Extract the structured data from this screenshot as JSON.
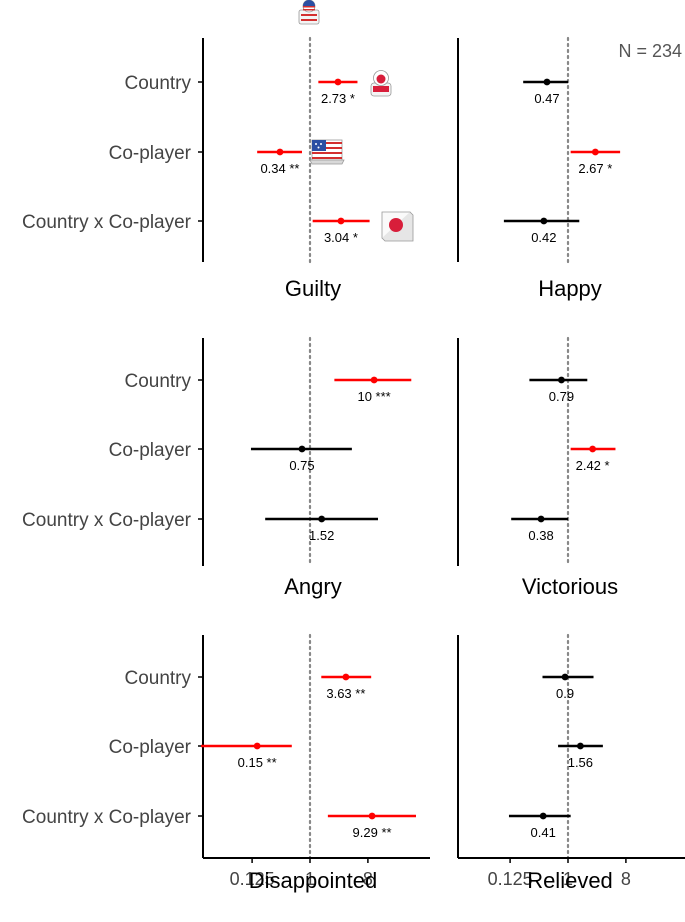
{
  "annotation": "N = 234",
  "colors": {
    "significant": "#ff0000",
    "nonsignificant": "#000000",
    "reference_line": "#888888",
    "axis": "#000000"
  },
  "icons": [
    "usa-flag-person-icon",
    "japan-flag-person-icon",
    "usa-flag-laptop-icon",
    "japan-flag-icon"
  ],
  "chart_data": [
    {
      "type": "scatter",
      "title": "Guilty",
      "x_scale": "log2",
      "x_ticks": [
        "0.125",
        "1",
        "8"
      ],
      "reference_line": 1,
      "categories": [
        "Country",
        "Co-player",
        "Country x Co-player"
      ],
      "points": [
        {
          "category": "Country",
          "estimate": 2.73,
          "ci": [
            1.35,
            5.5
          ],
          "label": "2.73 *",
          "significant": true
        },
        {
          "category": "Co-player",
          "estimate": 0.34,
          "ci": [
            0.15,
            0.75
          ],
          "label": "0.34 **",
          "significant": true
        },
        {
          "category": "Country x Co-player",
          "estimate": 3.04,
          "ci": [
            1.1,
            8.5
          ],
          "label": "3.04 *",
          "significant": true
        }
      ]
    },
    {
      "type": "scatter",
      "title": "Happy",
      "x_scale": "log2",
      "x_ticks": [
        "0.125",
        "1",
        "8"
      ],
      "reference_line": 1,
      "categories": [
        "Country",
        "Co-player",
        "Country x Co-player"
      ],
      "points": [
        {
          "category": "Country",
          "estimate": 0.47,
          "ci": [
            0.2,
            1.0
          ],
          "label": "0.47",
          "significant": false
        },
        {
          "category": "Co-player",
          "estimate": 2.67,
          "ci": [
            1.1,
            6.5
          ],
          "label": "2.67 *",
          "significant": true
        },
        {
          "category": "Country x Co-player",
          "estimate": 0.42,
          "ci": [
            0.1,
            1.5
          ],
          "label": "0.42",
          "significant": false
        }
      ]
    },
    {
      "type": "scatter",
      "title": "Angry",
      "x_scale": "log2",
      "x_ticks": [
        "0.125",
        "1",
        "8"
      ],
      "reference_line": 1,
      "categories": [
        "Country",
        "Co-player",
        "Country x Co-player"
      ],
      "points": [
        {
          "category": "Country",
          "estimate": 10,
          "ci": [
            2.4,
            38
          ],
          "label": "10 ***",
          "significant": true
        },
        {
          "category": "Co-player",
          "estimate": 0.75,
          "ci": [
            0.12,
            4.5
          ],
          "label": "0.75",
          "significant": false
        },
        {
          "category": "Country x Co-player",
          "estimate": 1.52,
          "ci": [
            0.2,
            11.5
          ],
          "label": "1.52",
          "significant": false
        }
      ]
    },
    {
      "type": "scatter",
      "title": "Victorious",
      "x_scale": "log2",
      "x_ticks": [
        "0.125",
        "1",
        "8"
      ],
      "reference_line": 1,
      "categories": [
        "Country",
        "Co-player",
        "Country x Co-player"
      ],
      "points": [
        {
          "category": "Country",
          "estimate": 0.79,
          "ci": [
            0.25,
            2.0
          ],
          "label": "0.79",
          "significant": false
        },
        {
          "category": "Co-player",
          "estimate": 2.42,
          "ci": [
            1.1,
            5.5
          ],
          "label": "2.42 *",
          "significant": true
        },
        {
          "category": "Country x Co-player",
          "estimate": 0.38,
          "ci": [
            0.13,
            1.0
          ],
          "label": "0.38",
          "significant": false
        }
      ]
    },
    {
      "type": "scatter",
      "title": "Disappointed",
      "x_scale": "log2",
      "x_ticks": [
        "0.125",
        "1",
        "8"
      ],
      "reference_line": 1,
      "categories": [
        "Country",
        "Co-player",
        "Country x Co-player"
      ],
      "points": [
        {
          "category": "Country",
          "estimate": 3.63,
          "ci": [
            1.5,
            9.0
          ],
          "label": "3.63 **",
          "significant": true
        },
        {
          "category": "Co-player",
          "estimate": 0.15,
          "ci": [
            0.02,
            0.52
          ],
          "label": "0.15 **",
          "significant": true
        },
        {
          "category": "Country x Co-player",
          "estimate": 9.29,
          "ci": [
            1.9,
            45
          ],
          "label": "9.29 **",
          "significant": true
        }
      ]
    },
    {
      "type": "scatter",
      "title": "Relieved",
      "x_scale": "log2",
      "x_ticks": [
        "0.125",
        "1",
        "8"
      ],
      "reference_line": 1,
      "categories": [
        "Country",
        "Co-player",
        "Country x Co-player"
      ],
      "points": [
        {
          "category": "Country",
          "estimate": 0.9,
          "ci": [
            0.4,
            2.5
          ],
          "label": "0.9",
          "significant": false
        },
        {
          "category": "Co-player",
          "estimate": 1.56,
          "ci": [
            0.7,
            3.5
          ],
          "label": "1.56",
          "significant": false
        },
        {
          "category": "Country x Co-player",
          "estimate": 0.41,
          "ci": [
            0.12,
            1.1
          ],
          "label": "0.41",
          "significant": false
        }
      ]
    }
  ]
}
